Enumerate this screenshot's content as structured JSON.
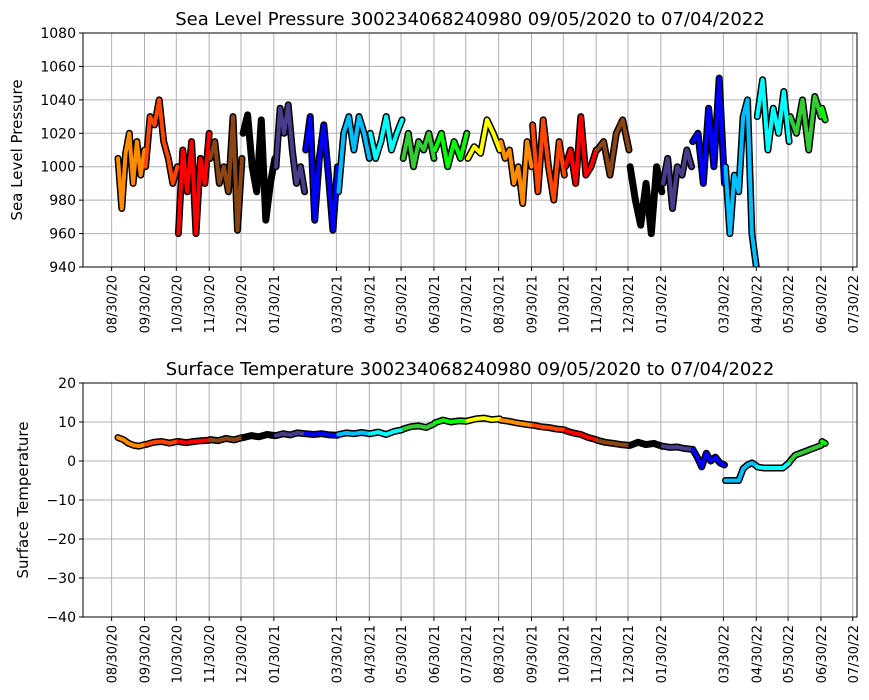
{
  "chart_data": [
    {
      "type": "line",
      "title": "Sea Level Pressure 300234068240980  09/05/2020 to 07/04/2022",
      "xlabel": "",
      "ylabel": "Sea Level Pressure",
      "xlim": [
        "2020-08-03",
        "2022-08-03"
      ],
      "ylim": [
        940,
        1080
      ],
      "yticks": [
        940,
        960,
        980,
        1000,
        1020,
        1040,
        1060,
        1080
      ],
      "xticks": [
        "08/30/20",
        "09/30/20",
        "10/30/20",
        "11/30/20",
        "12/30/20",
        "01/30/21",
        "03/30/21",
        "04/30/21",
        "05/30/21",
        "06/30/21",
        "07/30/21",
        "08/30/21",
        "09/30/21",
        "10/30/21",
        "11/30/21",
        "12/30/21",
        "01/30/22",
        "03/30/22",
        "04/30/22",
        "05/30/22",
        "06/30/22",
        "07/30/22"
      ],
      "grid": true,
      "series": [
        {
          "start": "2020-09-05",
          "end": "2020-09-30",
          "color": "#ff8c00",
          "values": [
            1005,
            975,
            1008,
            1020,
            990,
            1015,
            995,
            1010
          ]
        },
        {
          "start": "2020-10-01",
          "end": "2020-10-31",
          "color": "#ff4500",
          "values": [
            1000,
            1030,
            1025,
            1040,
            1015,
            1005,
            990,
            1000
          ]
        },
        {
          "start": "2020-11-01",
          "end": "2020-11-30",
          "color": "#ff0000",
          "values": [
            960,
            1010,
            985,
            1015,
            960,
            1005,
            990,
            1020
          ]
        },
        {
          "start": "2020-12-01",
          "end": "2020-12-31",
          "color": "#8b4513",
          "values": [
            1005,
            1015,
            990,
            1000,
            985,
            1030,
            962,
            1005
          ]
        },
        {
          "start": "2021-01-01",
          "end": "2021-01-31",
          "color": "#000000",
          "values": [
            1020,
            1031,
            1000,
            985,
            1028,
            968,
            990,
            1005
          ]
        },
        {
          "start": "2021-02-01",
          "end": "2021-02-28",
          "color": "#483d8b",
          "values": [
            1000,
            1035,
            1020,
            1037,
            1010,
            990,
            1000,
            985
          ]
        },
        {
          "start": "2021-03-01",
          "end": "2021-03-31",
          "color": "#0000ff",
          "values": [
            1010,
            1030,
            968,
            1005,
            1025,
            995,
            962,
            1000
          ]
        },
        {
          "start": "2021-04-01",
          "end": "2021-04-30",
          "color": "#00bfff",
          "values": [
            985,
            1020,
            1030,
            1010,
            1030,
            1020,
            1005
          ]
        },
        {
          "start": "2021-05-01",
          "end": "2021-05-31",
          "color": "#00ffff",
          "values": [
            1020,
            1005,
            1015,
            1030,
            1010,
            1020,
            1028
          ]
        },
        {
          "start": "2021-06-01",
          "end": "2021-06-30",
          "color": "#32cd32",
          "values": [
            1005,
            1020,
            1000,
            1015,
            1010,
            1020,
            1005
          ]
        },
        {
          "start": "2021-07-01",
          "end": "2021-07-31",
          "color": "#00ff00",
          "values": [
            1010,
            1020,
            1000,
            1015,
            1005,
            1020
          ]
        },
        {
          "start": "2021-08-01",
          "end": "2021-08-31",
          "color": "#ffff00",
          "values": [
            1005,
            1012,
            1008,
            1028,
            1020,
            1010
          ]
        },
        {
          "start": "2021-09-01",
          "end": "2021-09-30",
          "color": "#ff8c00",
          "values": [
            1015,
            1005,
            1010,
            990,
            1000,
            978,
            1015,
            1000
          ]
        },
        {
          "start": "2021-10-01",
          "end": "2021-10-31",
          "color": "#ff4500",
          "values": [
            1025,
            985,
            1028,
            1000,
            980,
            1015,
            995
          ]
        },
        {
          "start": "2021-11-01",
          "end": "2021-11-30",
          "color": "#ff0000",
          "values": [
            1000,
            1010,
            990,
            1030,
            995,
            1000,
            1010
          ]
        },
        {
          "start": "2021-12-01",
          "end": "2021-12-31",
          "color": "#8b4513",
          "values": [
            1010,
            1015,
            995,
            1020,
            1028,
            1010
          ]
        },
        {
          "start": "2022-01-01",
          "end": "2022-01-31",
          "color": "#000000",
          "values": [
            1000,
            980,
            965,
            990,
            960,
            1000,
            985
          ]
        },
        {
          "start": "2022-02-01",
          "end": "2022-02-28",
          "color": "#483d8b",
          "values": [
            990,
            1005,
            975,
            1000,
            995,
            1010,
            1000
          ]
        },
        {
          "start": "2022-03-01",
          "end": "2022-03-31",
          "color": "#0000ff",
          "values": [
            1015,
            1020,
            990,
            1035,
            1000,
            1053,
            990
          ]
        },
        {
          "start": "2022-04-01",
          "end": "2022-04-30",
          "color": "#00bfff",
          "values": [
            1000,
            960,
            995,
            985,
            1030,
            1040,
            960,
            940
          ]
        },
        {
          "start": "2022-05-01",
          "end": "2022-05-31",
          "color": "#00ffff",
          "values": [
            1030,
            1052,
            1010,
            1035,
            1020,
            1045,
            1015
          ]
        },
        {
          "start": "2022-06-01",
          "end": "2022-06-30",
          "color": "#32cd32",
          "values": [
            1030,
            1020,
            1040,
            1010,
            1042,
            1030
          ]
        },
        {
          "start": "2022-07-01",
          "end": "2022-07-04",
          "color": "#00ff00",
          "values": [
            1035,
            1028
          ]
        }
      ]
    },
    {
      "type": "line",
      "title": "Surface Temperature 300234068240980  09/05/2020 to 07/04/2022",
      "xlabel": "",
      "ylabel": "Surface Temperature",
      "xlim": [
        "2020-08-03",
        "2022-08-03"
      ],
      "ylim": [
        -40,
        20
      ],
      "yticks": [
        -40,
        -30,
        -20,
        -10,
        0,
        10,
        20
      ],
      "ytick_labels": [
        "−40",
        "−30",
        "−20",
        "−10",
        "0",
        "10",
        "20"
      ],
      "xticks": [
        "08/30/20",
        "09/30/20",
        "10/30/20",
        "11/30/20",
        "12/30/20",
        "01/30/21",
        "03/30/21",
        "04/30/21",
        "05/30/21",
        "06/30/21",
        "07/30/21",
        "08/30/21",
        "09/30/21",
        "10/30/21",
        "11/30/21",
        "12/30/21",
        "01/30/22",
        "03/30/22",
        "04/30/22",
        "05/30/22",
        "06/30/22",
        "07/30/22"
      ],
      "grid": true,
      "series": [
        {
          "start": "2020-09-05",
          "end": "2020-09-30",
          "color": "#ff8c00",
          "values": [
            6,
            5.5,
            4.5,
            4,
            3.8,
            4.2
          ]
        },
        {
          "start": "2020-10-01",
          "end": "2020-10-31",
          "color": "#ff4500",
          "values": [
            4.2,
            4.8,
            5,
            4.6,
            5
          ]
        },
        {
          "start": "2020-11-01",
          "end": "2020-11-30",
          "color": "#ff0000",
          "values": [
            5,
            4.7,
            5,
            5.2,
            5.3
          ]
        },
        {
          "start": "2020-12-01",
          "end": "2020-12-31",
          "color": "#8b4513",
          "values": [
            5.5,
            5.2,
            5.8,
            5.4,
            6
          ]
        },
        {
          "start": "2021-01-01",
          "end": "2021-01-31",
          "color": "#000000",
          "values": [
            6,
            6.5,
            6.2,
            6.8,
            6.5
          ]
        },
        {
          "start": "2021-02-01",
          "end": "2021-02-28",
          "color": "#483d8b",
          "values": [
            6.5,
            7,
            6.7,
            7.2,
            7
          ]
        },
        {
          "start": "2021-03-01",
          "end": "2021-03-31",
          "color": "#0000ff",
          "values": [
            7,
            6.8,
            7,
            6.7,
            6.6
          ]
        },
        {
          "start": "2021-04-01",
          "end": "2021-04-30",
          "color": "#00bfff",
          "values": [
            6.8,
            7.2,
            7,
            7.3,
            7
          ]
        },
        {
          "start": "2021-05-01",
          "end": "2021-05-31",
          "color": "#00ffff",
          "values": [
            7,
            7.4,
            6.8,
            7.6,
            8
          ]
        },
        {
          "start": "2021-06-01",
          "end": "2021-06-30",
          "color": "#32cd32",
          "values": [
            8.2,
            8.8,
            9,
            8.6,
            9.5
          ]
        },
        {
          "start": "2021-07-01",
          "end": "2021-07-31",
          "color": "#00ff00",
          "values": [
            9.8,
            10.5,
            10,
            10.3,
            10.2
          ]
        },
        {
          "start": "2021-08-01",
          "end": "2021-08-31",
          "color": "#ffff00",
          "values": [
            10.3,
            10.8,
            11,
            10.6,
            10.8
          ]
        },
        {
          "start": "2021-09-01",
          "end": "2021-09-30",
          "color": "#ff8c00",
          "values": [
            10.5,
            10.2,
            9.8,
            9.5,
            9.2
          ]
        },
        {
          "start": "2021-10-01",
          "end": "2021-10-31",
          "color": "#ff4500",
          "values": [
            9.2,
            8.8,
            8.6,
            8.2,
            8
          ]
        },
        {
          "start": "2021-11-01",
          "end": "2021-11-30",
          "color": "#ff0000",
          "values": [
            7.8,
            7.2,
            6.8,
            6,
            5.5
          ]
        },
        {
          "start": "2021-12-01",
          "end": "2021-12-31",
          "color": "#8b4513",
          "values": [
            5.3,
            4.8,
            4.5,
            4.2,
            4
          ]
        },
        {
          "start": "2022-01-01",
          "end": "2022-01-31",
          "color": "#000000",
          "values": [
            4,
            4.8,
            4.2,
            4.5,
            3.8
          ]
        },
        {
          "start": "2022-02-01",
          "end": "2022-02-28",
          "color": "#483d8b",
          "values": [
            3.8,
            3.5,
            3.6,
            3.2,
            3
          ]
        },
        {
          "start": "2022-03-01",
          "end": "2022-03-31",
          "color": "#0000ff",
          "values": [
            3,
            1,
            -1.5,
            2,
            0,
            1,
            -0.5,
            -1
          ]
        },
        {
          "start": "2022-04-01",
          "end": "2022-04-30",
          "color": "#00bfff",
          "values": [
            -5,
            -5,
            -5,
            -5,
            -2,
            -1,
            -0.5,
            -1.2
          ]
        },
        {
          "start": "2022-05-01",
          "end": "2022-05-31",
          "color": "#00ffff",
          "values": [
            -1.5,
            -1.8,
            -1.8,
            -1.8,
            -1.8,
            -0.5
          ]
        },
        {
          "start": "2022-06-01",
          "end": "2022-06-30",
          "color": "#32cd32",
          "values": [
            0,
            1.5,
            2,
            2.5,
            3,
            3.5,
            4
          ]
        },
        {
          "start": "2022-07-01",
          "end": "2022-07-04",
          "color": "#00ff00",
          "values": [
            5,
            4.5
          ]
        }
      ]
    }
  ]
}
